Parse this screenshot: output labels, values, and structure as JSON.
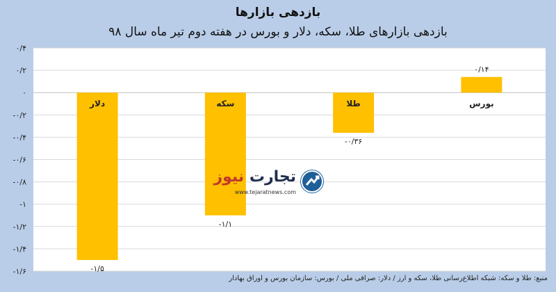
{
  "header": {
    "title": "بازدهی بازارها",
    "subtitle": "بازدهی بازارهای طلا، سکه، دلار و بورس در هفته دوم تیر ماه سال ۹۸"
  },
  "source": "منبع: طلا و سکه: شبکه اطلاع‌رسانی طلا، سکه و ارز / دلار: صرافی ملی / بورس: سازمان بورس و اوراق بهادار",
  "logo": {
    "name_part1": "تجارت",
    "name_part2": "نیوز",
    "url": "www.tejaratnews.com"
  },
  "colors": {
    "bar": "#ffc000",
    "grid": "#d9d9d9",
    "zero": "#bfbfbf"
  },
  "chart_data": {
    "type": "bar",
    "categories": [
      "دلار",
      "سکه",
      "طلا",
      "بورس"
    ],
    "values": [
      -1.5,
      -1.1,
      -0.36,
      0.14
    ],
    "value_labels": [
      "-۱/۵",
      "-۱/۱",
      "-۰/۳۶",
      "۰/۱۴"
    ],
    "ylim": [
      -1.6,
      0.4
    ],
    "yticks": [
      0.4,
      0.2,
      0,
      -0.2,
      -0.4,
      -0.6,
      -0.8,
      -1,
      -1.2,
      -1.4,
      -1.6
    ],
    "ytick_labels": [
      "۰/۴",
      "۰/۲",
      "۰",
      "-۰/۲",
      "-۰/۴",
      "-۰/۶",
      "-۰/۸",
      "-۱",
      "-۱/۲",
      "-۱/۴",
      "-۱/۶"
    ],
    "grid": true,
    "legend": "none",
    "title": "بازدهی بازارها",
    "xlabel": "",
    "ylabel": ""
  }
}
